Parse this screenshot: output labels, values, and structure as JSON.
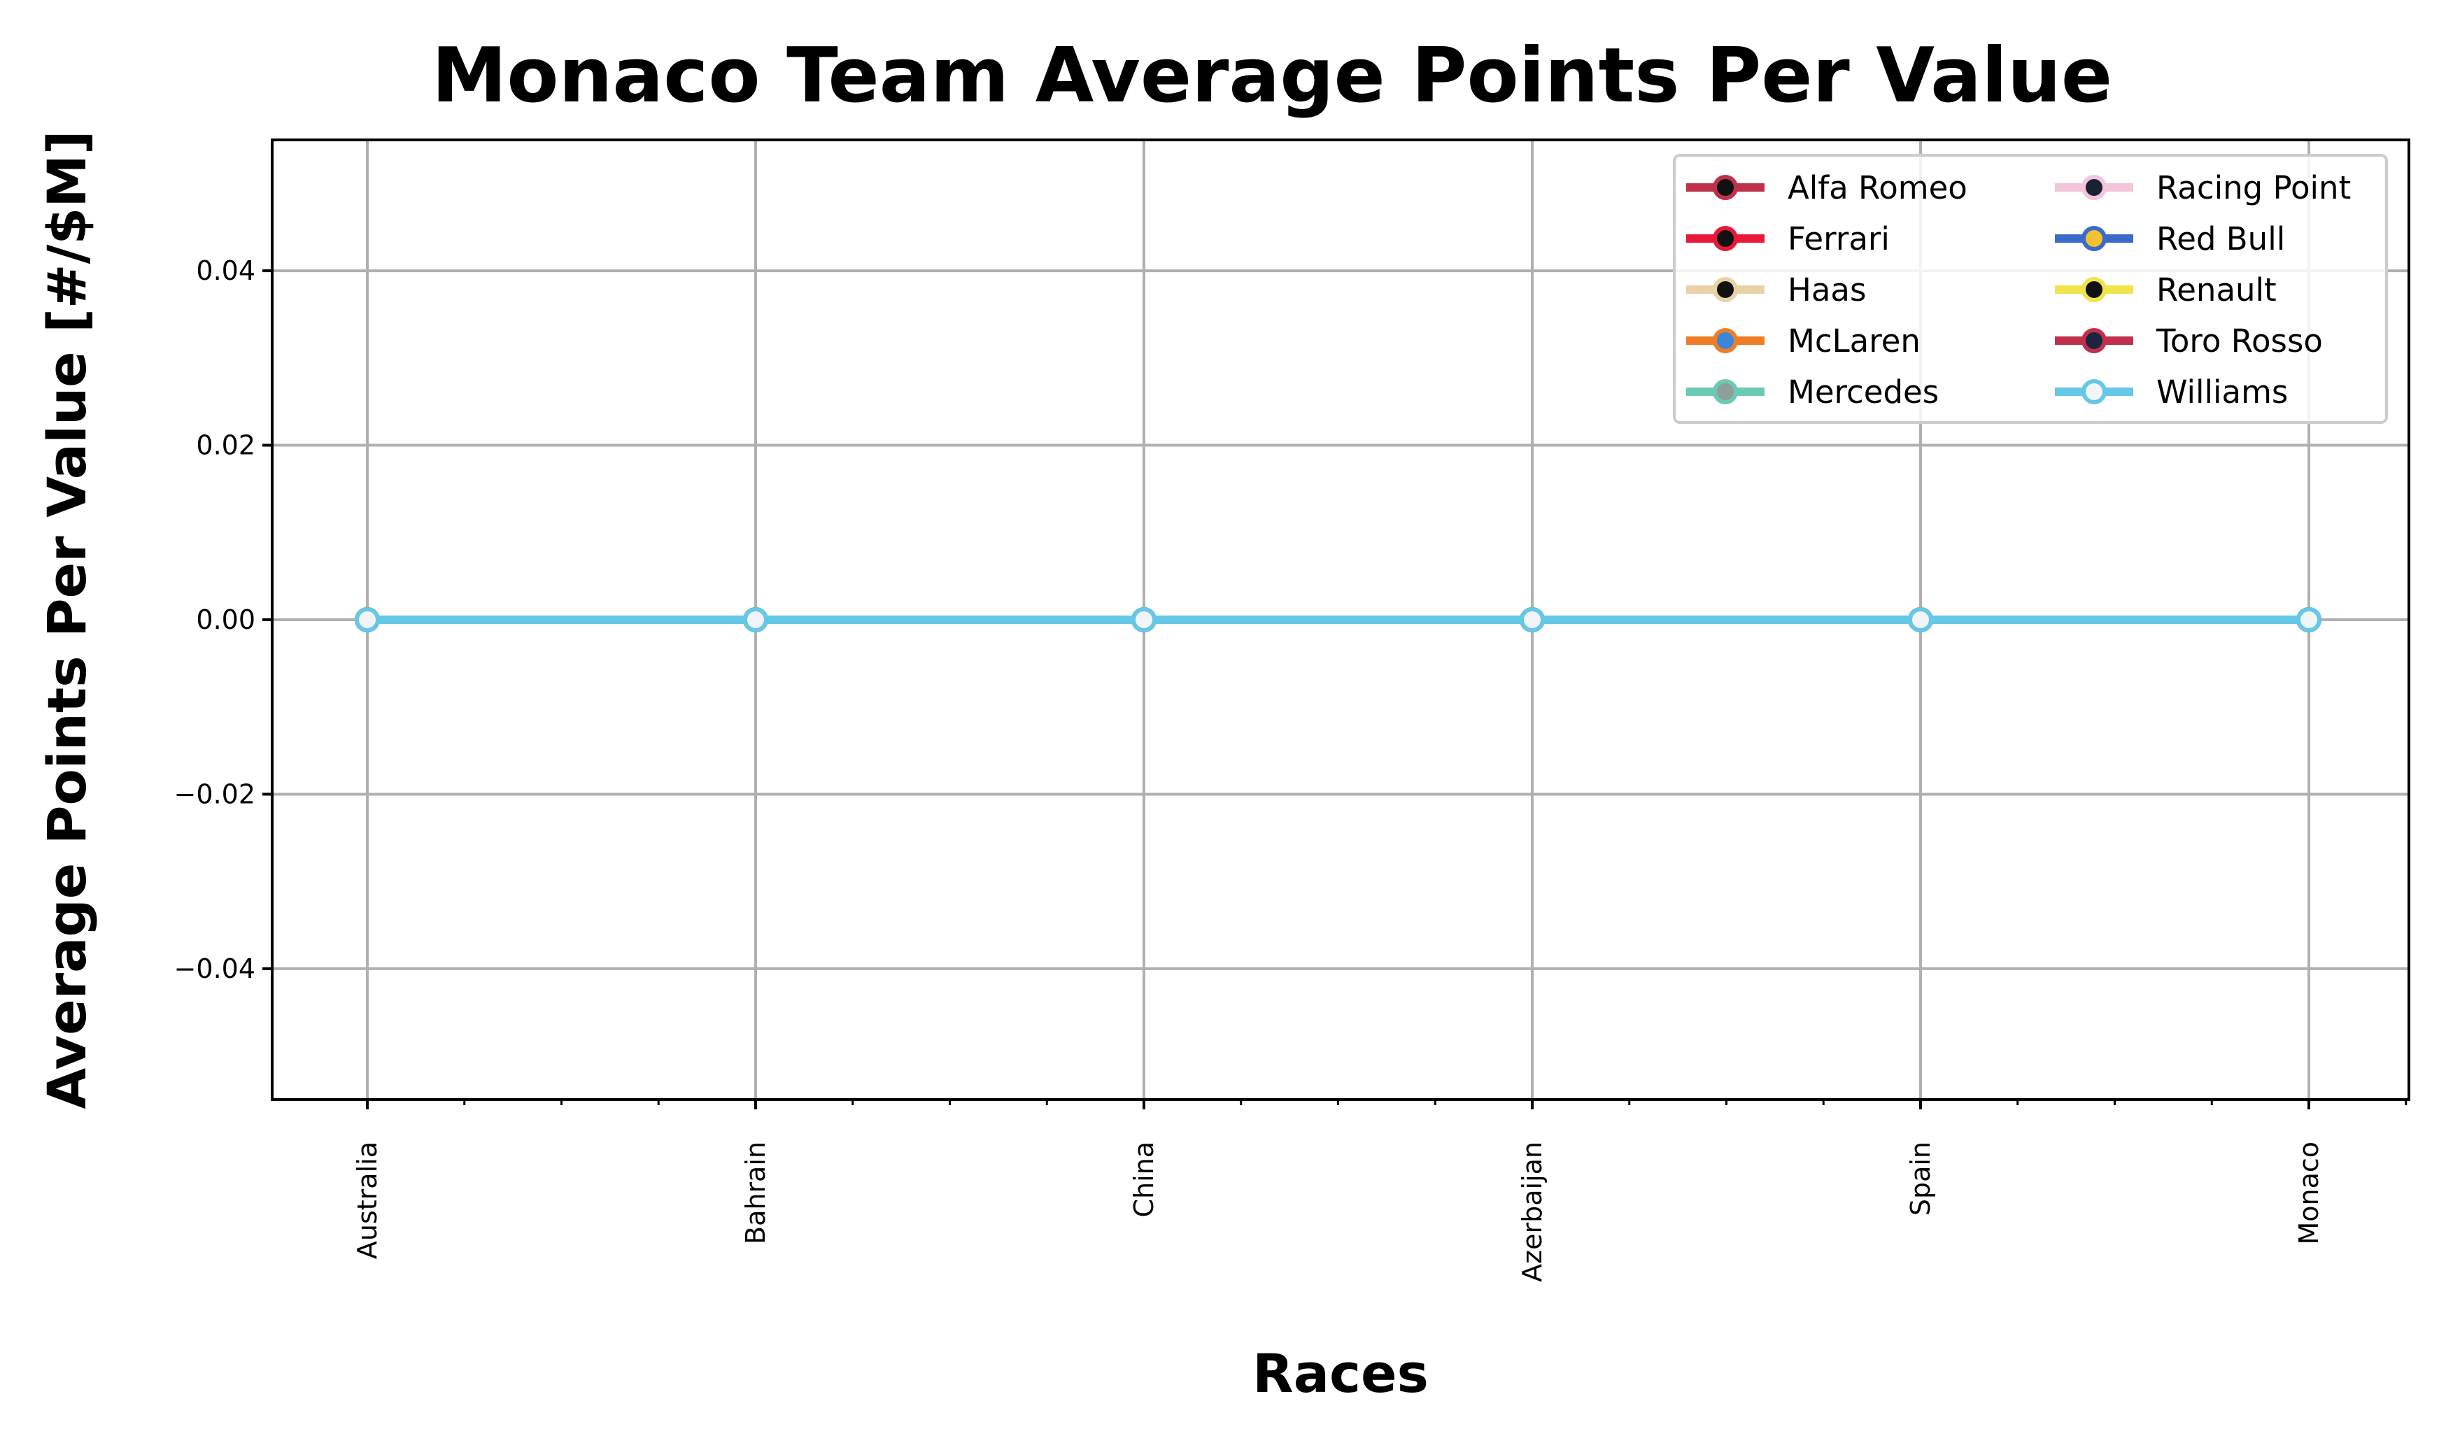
{
  "chart_data": {
    "type": "line",
    "title": "Monaco Team Average Points Per Value",
    "xlabel": "Races",
    "ylabel": "Average Points Per Value [#/$M]",
    "categories": [
      "Australia",
      "Bahrain",
      "China",
      "Azerbaijan",
      "Spain",
      "Monaco"
    ],
    "ylim": [
      -0.055,
      0.055
    ],
    "yticks": [
      0.04,
      0.02,
      0.0,
      -0.02,
      -0.04
    ],
    "ytick_labels": [
      "0.04",
      "0.02",
      "0.00",
      "−0.02",
      "−0.04"
    ],
    "grid": true,
    "legend_position": "top-right",
    "legend_columns": 2,
    "series": [
      {
        "name": "Alfa Romeo",
        "color": "#c0304a",
        "marker_face": "#111111",
        "values": [
          0,
          0,
          0,
          0,
          0,
          0
        ]
      },
      {
        "name": "Ferrari",
        "color": "#e8183a",
        "marker_face": "#111111",
        "values": [
          0,
          0,
          0,
          0,
          0,
          0
        ]
      },
      {
        "name": "Haas",
        "color": "#e8d2a6",
        "marker_face": "#111111",
        "values": [
          0,
          0,
          0,
          0,
          0,
          0
        ]
      },
      {
        "name": "McLaren",
        "color": "#ef7d26",
        "marker_face": "#3a86d8",
        "values": [
          0,
          0,
          0,
          0,
          0,
          0
        ]
      },
      {
        "name": "Mercedes",
        "color": "#6cc9b6",
        "marker_face": "#8f9e9a",
        "values": [
          0,
          0,
          0,
          0,
          0,
          0
        ]
      },
      {
        "name": "Racing Point",
        "color": "#f3c4da",
        "marker_face": "#1c2033",
        "values": [
          0,
          0,
          0,
          0,
          0,
          0
        ]
      },
      {
        "name": "Red Bull",
        "color": "#3a6bc8",
        "marker_face": "#f2c230",
        "values": [
          0,
          0,
          0,
          0,
          0,
          0
        ]
      },
      {
        "name": "Renault",
        "color": "#f0e44a",
        "marker_face": "#111111",
        "values": [
          0,
          0,
          0,
          0,
          0,
          0
        ]
      },
      {
        "name": "Toro Rosso",
        "color": "#c0304a",
        "marker_face": "#1c2440",
        "values": [
          0,
          0,
          0,
          0,
          0,
          0
        ]
      },
      {
        "name": "Williams",
        "color": "#64c8e6",
        "marker_face": "#f2f5f8",
        "values": [
          0,
          0,
          0,
          0,
          0,
          0
        ]
      }
    ]
  }
}
